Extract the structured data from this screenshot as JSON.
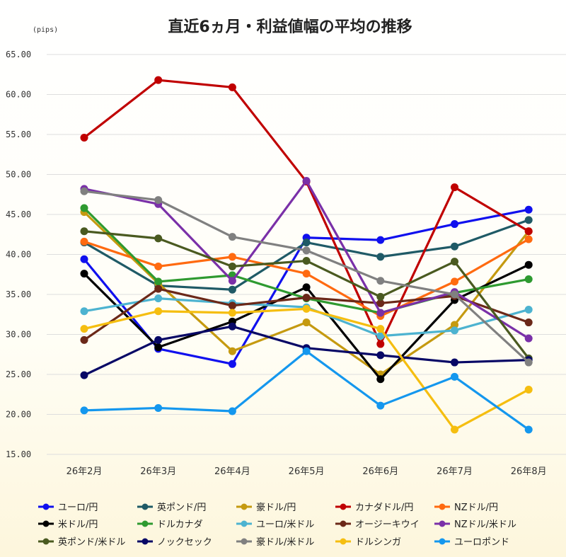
{
  "chart_data": {
    "type": "line",
    "title": "直近6ヵ月・利益値幅の平均の推移",
    "unit_label": "(pips)",
    "ylim": [
      15,
      65
    ],
    "yticks": [
      "15.00",
      "20.00",
      "25.00",
      "30.00",
      "35.00",
      "40.00",
      "45.00",
      "50.00",
      "55.00",
      "60.00",
      "65.00"
    ],
    "grid": true,
    "legend_position": "bottom",
    "categories": [
      "26年2月",
      "26年3月",
      "26年4月",
      "26年5月",
      "26年6月",
      "26年7月",
      "26年8月"
    ],
    "series": [
      {
        "name": "ユーロ/円",
        "color": "#1010ee",
        "values": [
          39.4,
          28.2,
          26.3,
          42.1,
          41.8,
          43.8,
          45.6
        ]
      },
      {
        "name": "英ポンド/円",
        "color": "#1f5a66",
        "values": [
          41.5,
          36.1,
          35.6,
          41.5,
          39.7,
          41.0,
          44.3
        ]
      },
      {
        "name": "豪ドル/円",
        "color": "#c59a10",
        "values": [
          45.3,
          36.4,
          27.9,
          31.5,
          25.0,
          31.2,
          42.9
        ]
      },
      {
        "name": "カナダドル/円",
        "color": "#c00000",
        "values": [
          54.6,
          61.8,
          60.9,
          49.1,
          28.8,
          48.4,
          42.9
        ]
      },
      {
        "name": "NZドル/円",
        "color": "#ff6a10",
        "values": [
          41.6,
          38.5,
          39.7,
          37.6,
          32.3,
          36.6,
          41.9
        ]
      },
      {
        "name": "米ドル/円",
        "color": "#000000",
        "values": [
          37.6,
          28.4,
          31.6,
          35.9,
          24.4,
          34.3,
          38.7
        ]
      },
      {
        "name": "ドルカナダ",
        "color": "#2e9a30",
        "values": [
          45.8,
          36.6,
          37.4,
          34.5,
          32.7,
          35.2,
          36.9
        ]
      },
      {
        "name": "ユーロ/米ドル",
        "color": "#4db3d0",
        "values": [
          32.9,
          34.5,
          33.9,
          33.4,
          29.8,
          30.5,
          33.1
        ]
      },
      {
        "name": "オージーキウイ",
        "color": "#6b2818",
        "values": [
          29.3,
          35.7,
          33.6,
          34.6,
          33.9,
          34.8,
          31.5
        ]
      },
      {
        "name": "NZドル/米ドル",
        "color": "#7a30a8",
        "values": [
          48.2,
          46.3,
          36.7,
          49.2,
          32.7,
          35.3,
          29.5
        ]
      },
      {
        "name": "英ポンド/米ドル",
        "color": "#4a5a20",
        "values": [
          42.9,
          42.0,
          38.5,
          39.2,
          34.7,
          39.1,
          27.0
        ]
      },
      {
        "name": "ノックセック",
        "color": "#080866",
        "values": [
          24.9,
          29.3,
          31.0,
          28.3,
          27.4,
          26.5,
          26.8
        ]
      },
      {
        "name": "豪ドル/米ドル",
        "color": "#808080",
        "values": [
          47.9,
          46.8,
          42.2,
          40.5,
          36.7,
          35.0,
          26.5
        ]
      },
      {
        "name": "ドルシンガ",
        "color": "#f5be10",
        "values": [
          30.7,
          32.9,
          32.7,
          33.2,
          30.7,
          18.1,
          23.1
        ]
      },
      {
        "name": "ユーロポンド",
        "color": "#1497ee",
        "values": [
          20.5,
          20.8,
          20.4,
          27.9,
          21.1,
          24.7,
          18.1
        ]
      }
    ]
  }
}
